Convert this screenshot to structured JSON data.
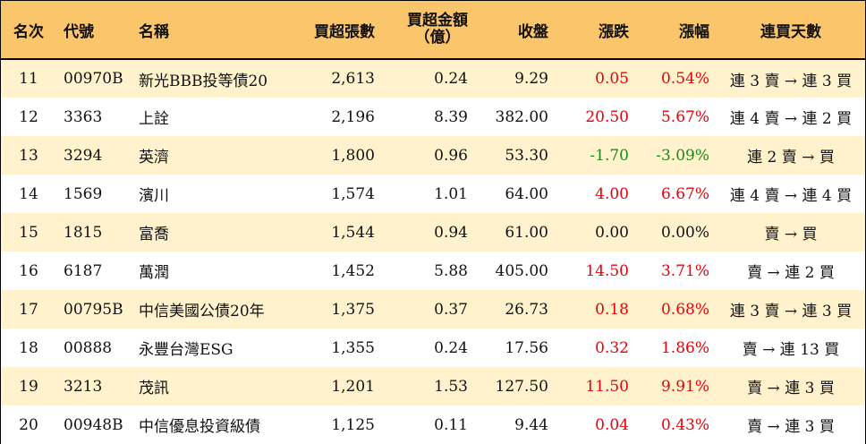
{
  "headers": {
    "rank": "名次",
    "code": "代號",
    "name": "名稱",
    "volume": "買超張數",
    "amount_line1": "買超金額",
    "amount_line2": "（億）",
    "close": "收盤",
    "change": "漲跌",
    "pct": "漲幅",
    "days": "連買天數"
  },
  "colors": {
    "header_bg": "#fbc56b",
    "stripe_bg": "#fff2cc",
    "up": "#e8000b",
    "down": "#1a8a1a"
  },
  "rows": [
    {
      "rank": "11",
      "code": "00970B",
      "name": "新光BBB投等債20",
      "volume": "2,613",
      "amount": "0.24",
      "close": "9.29",
      "change": "0.05",
      "pct": "0.54%",
      "days": "連 3 賣 → 連 3 買",
      "dir": "up"
    },
    {
      "rank": "12",
      "code": "3363",
      "name": "上詮",
      "volume": "2,196",
      "amount": "8.39",
      "close": "382.00",
      "change": "20.50",
      "pct": "5.67%",
      "days": "連 4 賣 → 連 2 買",
      "dir": "up"
    },
    {
      "rank": "13",
      "code": "3294",
      "name": "英濟",
      "volume": "1,800",
      "amount": "0.96",
      "close": "53.30",
      "change": "-1.70",
      "pct": "-3.09%",
      "days": "連 2 賣 → 買",
      "dir": "down"
    },
    {
      "rank": "14",
      "code": "1569",
      "name": "濱川",
      "volume": "1,574",
      "amount": "1.01",
      "close": "64.00",
      "change": "4.00",
      "pct": "6.67%",
      "days": "連 4 賣 → 連 4 買",
      "dir": "up"
    },
    {
      "rank": "15",
      "code": "1815",
      "name": "富喬",
      "volume": "1,544",
      "amount": "0.94",
      "close": "61.00",
      "change": "0.00",
      "pct": "0.00%",
      "days": "賣 → 買",
      "dir": "flat"
    },
    {
      "rank": "16",
      "code": "6187",
      "name": "萬潤",
      "volume": "1,452",
      "amount": "5.88",
      "close": "405.00",
      "change": "14.50",
      "pct": "3.71%",
      "days": "賣 → 連 2 買",
      "dir": "up"
    },
    {
      "rank": "17",
      "code": "00795B",
      "name": "中信美國公債20年",
      "volume": "1,375",
      "amount": "0.37",
      "close": "26.73",
      "change": "0.18",
      "pct": "0.68%",
      "days": "連 3 賣 → 連 3 買",
      "dir": "up"
    },
    {
      "rank": "18",
      "code": "00888",
      "name": "永豐台灣ESG",
      "volume": "1,355",
      "amount": "0.24",
      "close": "17.56",
      "change": "0.32",
      "pct": "1.86%",
      "days": "賣 → 連 13 買",
      "dir": "up"
    },
    {
      "rank": "19",
      "code": "3213",
      "name": "茂訊",
      "volume": "1,201",
      "amount": "1.53",
      "close": "127.50",
      "change": "11.50",
      "pct": "9.91%",
      "days": "賣 → 連 3 買",
      "dir": "up"
    },
    {
      "rank": "20",
      "code": "00948B",
      "name": "中信優息投資級債",
      "volume": "1,125",
      "amount": "0.11",
      "close": "9.44",
      "change": "0.04",
      "pct": "0.43%",
      "days": "賣 → 連 3 買",
      "dir": "up"
    }
  ]
}
